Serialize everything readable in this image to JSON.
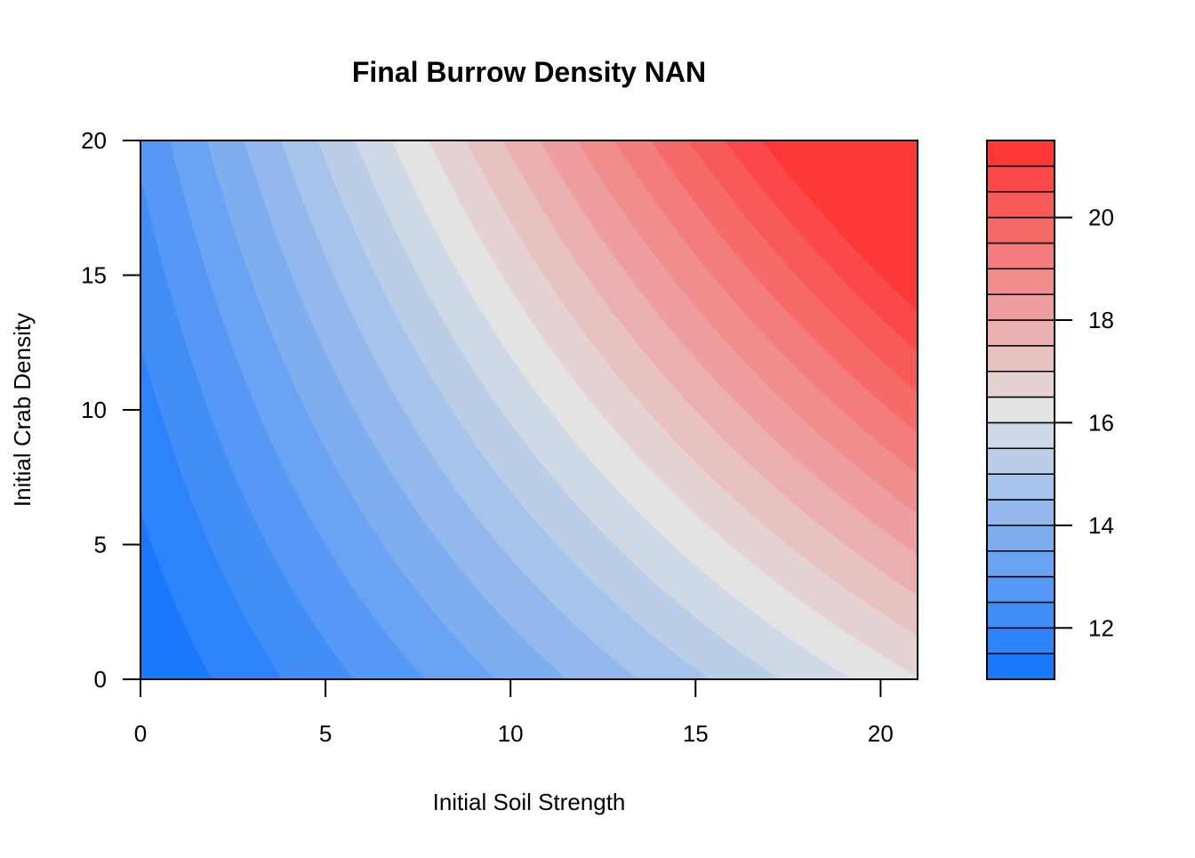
{
  "chart_data": {
    "type": "heatmap",
    "subtype": "filled-contour",
    "title": "Final Burrow Density NAN",
    "xlabel": "Initial Soil Strength",
    "ylabel": "Initial Crab Density",
    "xlim": [
      0,
      21
    ],
    "ylim": [
      0,
      20
    ],
    "x_ticks": [
      0,
      5,
      10,
      15,
      20
    ],
    "y_ticks": [
      0,
      5,
      10,
      15,
      20
    ],
    "surface": {
      "base": 11.0,
      "x_coef": 0.26,
      "y_coef": 0.08,
      "xy_coef": 0.012
    },
    "legend": {
      "placement": "right",
      "levels": [
        11.0,
        11.5,
        12.0,
        12.5,
        13.0,
        13.5,
        14.0,
        14.5,
        15.0,
        15.5,
        16.0,
        16.5,
        17.0,
        17.5,
        18.0,
        18.5,
        19.0,
        19.5,
        20.0,
        20.5,
        21.0,
        21.5
      ],
      "tick_values": [
        12,
        14,
        16,
        18,
        20
      ]
    },
    "colors": {
      "low": "#0f73ff",
      "mid": "#e3e3e3",
      "high": "#ff2e2e",
      "mid_level": 16.25
    }
  }
}
